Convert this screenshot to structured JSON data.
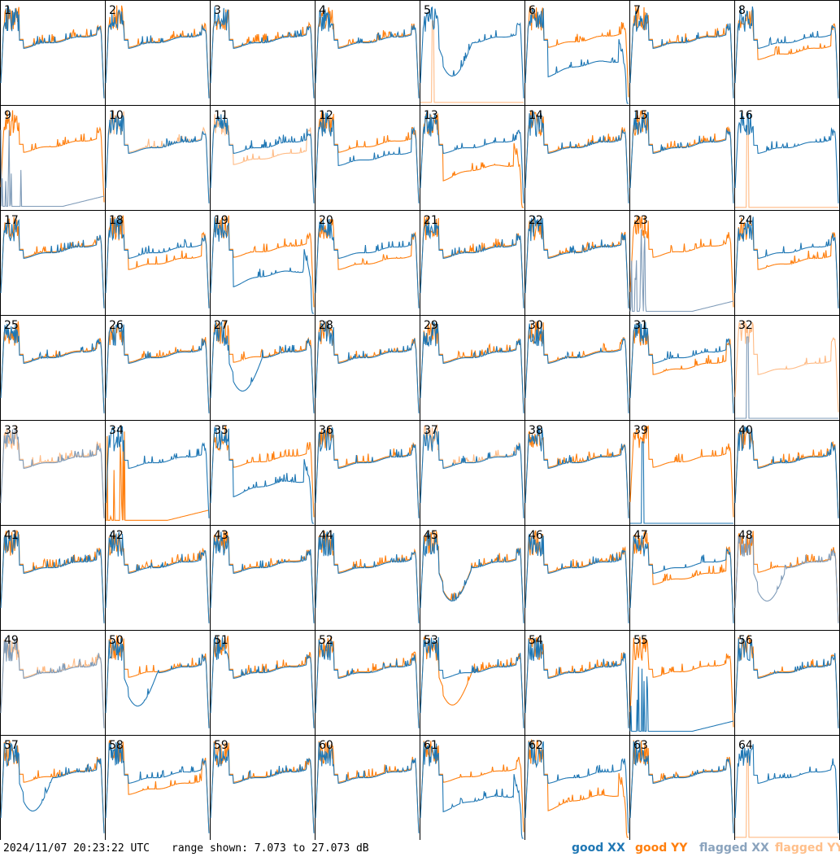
{
  "footer": {
    "timestamp": "2024/11/07 20:23:22 UTC",
    "range_text": "range shown: 7.073 to 27.073 dB",
    "legend": {
      "good_xx": "good XX",
      "good_yy": "good YY",
      "flagged_xx": "flagged XX",
      "flagged_yy": "flagged YY"
    }
  },
  "colors": {
    "good_xx": "#1f77b4",
    "good_yy": "#ff7f0e",
    "flagged_xx": "#7f9bb8",
    "flagged_yy": "#ffbb85"
  },
  "chart_data": {
    "type": "line",
    "grid": "8x8 small multiples",
    "ylim_db": [
      7.073,
      27.073
    ],
    "x": "frequency channel (unlabeled)",
    "series_legend": [
      "good XX",
      "good YY",
      "flagged XX",
      "flagged YY"
    ],
    "panels": [
      {
        "id": 1,
        "xx": {
          "state": "good",
          "shape": "normal"
        },
        "yy": {
          "state": "good",
          "shape": "normal"
        }
      },
      {
        "id": 2,
        "xx": {
          "state": "good",
          "shape": "normal"
        },
        "yy": {
          "state": "good",
          "shape": "normal"
        }
      },
      {
        "id": 3,
        "xx": {
          "state": "good",
          "shape": "normal"
        },
        "yy": {
          "state": "good",
          "shape": "normal"
        }
      },
      {
        "id": 4,
        "xx": {
          "state": "good",
          "shape": "normal"
        },
        "yy": {
          "state": "good",
          "shape": "normal"
        }
      },
      {
        "id": 5,
        "xx": {
          "state": "good",
          "shape": "dip"
        },
        "yy": {
          "state": "flagged",
          "shape": "spike"
        }
      },
      {
        "id": 6,
        "xx": {
          "state": "good",
          "shape": "dropped"
        },
        "yy": {
          "state": "good",
          "shape": "normal"
        }
      },
      {
        "id": 7,
        "xx": {
          "state": "good",
          "shape": "normal"
        },
        "yy": {
          "state": "good",
          "shape": "normal"
        }
      },
      {
        "id": 8,
        "xx": {
          "state": "good",
          "shape": "normal"
        },
        "yy": {
          "state": "good",
          "shape": "lower"
        }
      },
      {
        "id": 9,
        "xx": {
          "state": "flagged",
          "shape": "dead"
        },
        "yy": {
          "state": "good",
          "shape": "normal"
        }
      },
      {
        "id": 10,
        "xx": {
          "state": "good",
          "shape": "normal"
        },
        "yy": {
          "state": "flagged",
          "shape": "normal"
        }
      },
      {
        "id": 11,
        "xx": {
          "state": "good",
          "shape": "normal"
        },
        "yy": {
          "state": "flagged",
          "shape": "lower"
        }
      },
      {
        "id": 12,
        "xx": {
          "state": "good",
          "shape": "lower"
        },
        "yy": {
          "state": "good",
          "shape": "normal"
        }
      },
      {
        "id": 13,
        "xx": {
          "state": "good",
          "shape": "normal"
        },
        "yy": {
          "state": "good",
          "shape": "dropped"
        }
      },
      {
        "id": 14,
        "xx": {
          "state": "good",
          "shape": "normal"
        },
        "yy": {
          "state": "good",
          "shape": "normal"
        }
      },
      {
        "id": 15,
        "xx": {
          "state": "good",
          "shape": "normal"
        },
        "yy": {
          "state": "good",
          "shape": "normal"
        }
      },
      {
        "id": 16,
        "xx": {
          "state": "good",
          "shape": "normal"
        },
        "yy": {
          "state": "flagged",
          "shape": "spike"
        }
      },
      {
        "id": 17,
        "xx": {
          "state": "good",
          "shape": "normal"
        },
        "yy": {
          "state": "good",
          "shape": "normal"
        }
      },
      {
        "id": 18,
        "xx": {
          "state": "good",
          "shape": "normal"
        },
        "yy": {
          "state": "good",
          "shape": "lower"
        }
      },
      {
        "id": 19,
        "xx": {
          "state": "good",
          "shape": "dropped"
        },
        "yy": {
          "state": "good",
          "shape": "normal"
        }
      },
      {
        "id": 20,
        "xx": {
          "state": "good",
          "shape": "normal"
        },
        "yy": {
          "state": "good",
          "shape": "lower"
        }
      },
      {
        "id": 21,
        "xx": {
          "state": "good",
          "shape": "normal"
        },
        "yy": {
          "state": "good",
          "shape": "normal"
        }
      },
      {
        "id": 22,
        "xx": {
          "state": "good",
          "shape": "normal"
        },
        "yy": {
          "state": "good",
          "shape": "normal"
        }
      },
      {
        "id": 23,
        "xx": {
          "state": "flagged",
          "shape": "dead"
        },
        "yy": {
          "state": "good",
          "shape": "normal"
        }
      },
      {
        "id": 24,
        "xx": {
          "state": "good",
          "shape": "normal"
        },
        "yy": {
          "state": "good",
          "shape": "lower"
        }
      },
      {
        "id": 25,
        "xx": {
          "state": "good",
          "shape": "normal"
        },
        "yy": {
          "state": "good",
          "shape": "normal"
        }
      },
      {
        "id": 26,
        "xx": {
          "state": "good",
          "shape": "normal"
        },
        "yy": {
          "state": "good",
          "shape": "normal"
        }
      },
      {
        "id": 27,
        "xx": {
          "state": "good",
          "shape": "dip"
        },
        "yy": {
          "state": "good",
          "shape": "normal"
        }
      },
      {
        "id": 28,
        "xx": {
          "state": "good",
          "shape": "normal"
        },
        "yy": {
          "state": "good",
          "shape": "normal"
        }
      },
      {
        "id": 29,
        "xx": {
          "state": "good",
          "shape": "normal"
        },
        "yy": {
          "state": "good",
          "shape": "normal"
        }
      },
      {
        "id": 30,
        "xx": {
          "state": "good",
          "shape": "normal"
        },
        "yy": {
          "state": "good",
          "shape": "normal"
        }
      },
      {
        "id": 31,
        "xx": {
          "state": "good",
          "shape": "normal"
        },
        "yy": {
          "state": "good",
          "shape": "lower"
        }
      },
      {
        "id": 32,
        "xx": {
          "state": "flagged",
          "shape": "spike"
        },
        "yy": {
          "state": "flagged",
          "shape": "lower"
        }
      },
      {
        "id": 33,
        "xx": {
          "state": "flagged",
          "shape": "normal"
        },
        "yy": {
          "state": "flagged",
          "shape": "normal"
        }
      },
      {
        "id": 34,
        "xx": {
          "state": "good",
          "shape": "normal"
        },
        "yy": {
          "state": "good",
          "shape": "dead"
        }
      },
      {
        "id": 35,
        "xx": {
          "state": "good",
          "shape": "dropped"
        },
        "yy": {
          "state": "good",
          "shape": "normal"
        }
      },
      {
        "id": 36,
        "xx": {
          "state": "good",
          "shape": "normal"
        },
        "yy": {
          "state": "good",
          "shape": "normal"
        }
      },
      {
        "id": 37,
        "xx": {
          "state": "good",
          "shape": "normal"
        },
        "yy": {
          "state": "flagged",
          "shape": "normal"
        }
      },
      {
        "id": 38,
        "xx": {
          "state": "good",
          "shape": "normal"
        },
        "yy": {
          "state": "good",
          "shape": "normal"
        }
      },
      {
        "id": 39,
        "xx": {
          "state": "good",
          "shape": "spike"
        },
        "yy": {
          "state": "good",
          "shape": "normal"
        }
      },
      {
        "id": 40,
        "xx": {
          "state": "good",
          "shape": "normal"
        },
        "yy": {
          "state": "good",
          "shape": "normal"
        }
      },
      {
        "id": 41,
        "xx": {
          "state": "good",
          "shape": "normal"
        },
        "yy": {
          "state": "good",
          "shape": "normal"
        }
      },
      {
        "id": 42,
        "xx": {
          "state": "good",
          "shape": "normal"
        },
        "yy": {
          "state": "good",
          "shape": "normal"
        }
      },
      {
        "id": 43,
        "xx": {
          "state": "good",
          "shape": "normal"
        },
        "yy": {
          "state": "good",
          "shape": "normal"
        }
      },
      {
        "id": 44,
        "xx": {
          "state": "good",
          "shape": "normal"
        },
        "yy": {
          "state": "good",
          "shape": "normal"
        }
      },
      {
        "id": 45,
        "xx": {
          "state": "good",
          "shape": "dip"
        },
        "yy": {
          "state": "good",
          "shape": "dip"
        }
      },
      {
        "id": 46,
        "xx": {
          "state": "good",
          "shape": "normal"
        },
        "yy": {
          "state": "good",
          "shape": "normal"
        }
      },
      {
        "id": 47,
        "xx": {
          "state": "good",
          "shape": "normal"
        },
        "yy": {
          "state": "good",
          "shape": "lower"
        }
      },
      {
        "id": 48,
        "xx": {
          "state": "flagged",
          "shape": "dip"
        },
        "yy": {
          "state": "good",
          "shape": "normal"
        }
      },
      {
        "id": 49,
        "xx": {
          "state": "flagged",
          "shape": "normal"
        },
        "yy": {
          "state": "flagged",
          "shape": "normal"
        }
      },
      {
        "id": 50,
        "xx": {
          "state": "good",
          "shape": "dip"
        },
        "yy": {
          "state": "good",
          "shape": "normal"
        }
      },
      {
        "id": 51,
        "xx": {
          "state": "good",
          "shape": "normal"
        },
        "yy": {
          "state": "good",
          "shape": "normal"
        }
      },
      {
        "id": 52,
        "xx": {
          "state": "good",
          "shape": "normal"
        },
        "yy": {
          "state": "good",
          "shape": "normal"
        }
      },
      {
        "id": 53,
        "xx": {
          "state": "good",
          "shape": "normal"
        },
        "yy": {
          "state": "good",
          "shape": "dip"
        }
      },
      {
        "id": 54,
        "xx": {
          "state": "good",
          "shape": "normal"
        },
        "yy": {
          "state": "good",
          "shape": "normal"
        }
      },
      {
        "id": 55,
        "xx": {
          "state": "good",
          "shape": "dead"
        },
        "yy": {
          "state": "good",
          "shape": "normal"
        }
      },
      {
        "id": 56,
        "xx": {
          "state": "good",
          "shape": "normal"
        },
        "yy": {
          "state": "good",
          "shape": "normal"
        }
      },
      {
        "id": 57,
        "xx": {
          "state": "good",
          "shape": "dip"
        },
        "yy": {
          "state": "good",
          "shape": "normal"
        }
      },
      {
        "id": 58,
        "xx": {
          "state": "good",
          "shape": "normal"
        },
        "yy": {
          "state": "good",
          "shape": "lower"
        }
      },
      {
        "id": 59,
        "xx": {
          "state": "good",
          "shape": "normal"
        },
        "yy": {
          "state": "good",
          "shape": "normal"
        }
      },
      {
        "id": 60,
        "xx": {
          "state": "good",
          "shape": "normal"
        },
        "yy": {
          "state": "good",
          "shape": "normal"
        }
      },
      {
        "id": 61,
        "xx": {
          "state": "good",
          "shape": "dropped"
        },
        "yy": {
          "state": "good",
          "shape": "normal"
        }
      },
      {
        "id": 62,
        "xx": {
          "state": "good",
          "shape": "normal"
        },
        "yy": {
          "state": "good",
          "shape": "dropped"
        }
      },
      {
        "id": 63,
        "xx": {
          "state": "good",
          "shape": "normal"
        },
        "yy": {
          "state": "good",
          "shape": "normal"
        }
      },
      {
        "id": 64,
        "xx": {
          "state": "good",
          "shape": "normal"
        },
        "yy": {
          "state": "flagged",
          "shape": "spike"
        }
      }
    ]
  }
}
